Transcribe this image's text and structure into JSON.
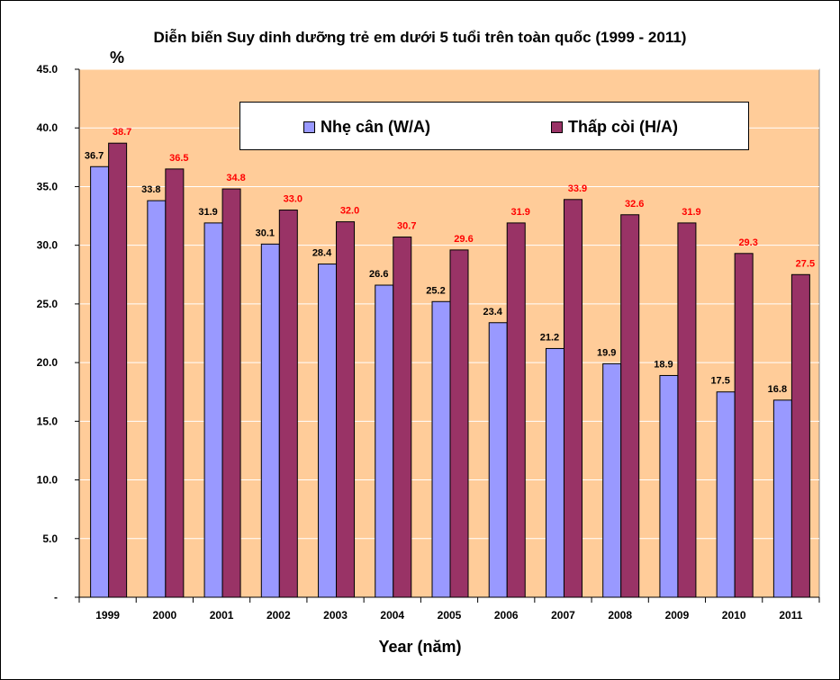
{
  "chart_data": {
    "type": "bar",
    "title": "Diễn biến Suy dinh dưỡng trẻ em dưới 5 tuổi trên toàn quốc (1999 - 2011)",
    "ylabel": "%",
    "xlabel": "Year (năm)",
    "ylim": [
      0,
      45
    ],
    "yticks": [
      "-",
      "5.0",
      "10.0",
      "15.0",
      "20.0",
      "25.0",
      "30.0",
      "35.0",
      "40.0",
      "45.0"
    ],
    "categories": [
      "1999",
      "2000",
      "2001",
      "2002",
      "2003",
      "2004",
      "2005",
      "2006",
      "2007",
      "2008",
      "2009",
      "2010",
      "2011"
    ],
    "series": [
      {
        "name": "Nhẹ cân (W/A)",
        "color": "#9999ff",
        "label_color": "#000000",
        "values": [
          36.7,
          33.8,
          31.9,
          30.1,
          28.4,
          26.6,
          25.2,
          23.4,
          21.2,
          19.9,
          18.9,
          17.5,
          16.8
        ]
      },
      {
        "name": "Thấp còi (H/A)",
        "color": "#993366",
        "label_color": "#ff0000",
        "values": [
          38.7,
          36.5,
          34.8,
          33.0,
          32.0,
          30.7,
          29.6,
          31.9,
          33.9,
          32.6,
          31.9,
          29.3,
          27.5
        ]
      }
    ],
    "plot_background": "#ffcc99",
    "grid": true,
    "legend_position": "top"
  }
}
